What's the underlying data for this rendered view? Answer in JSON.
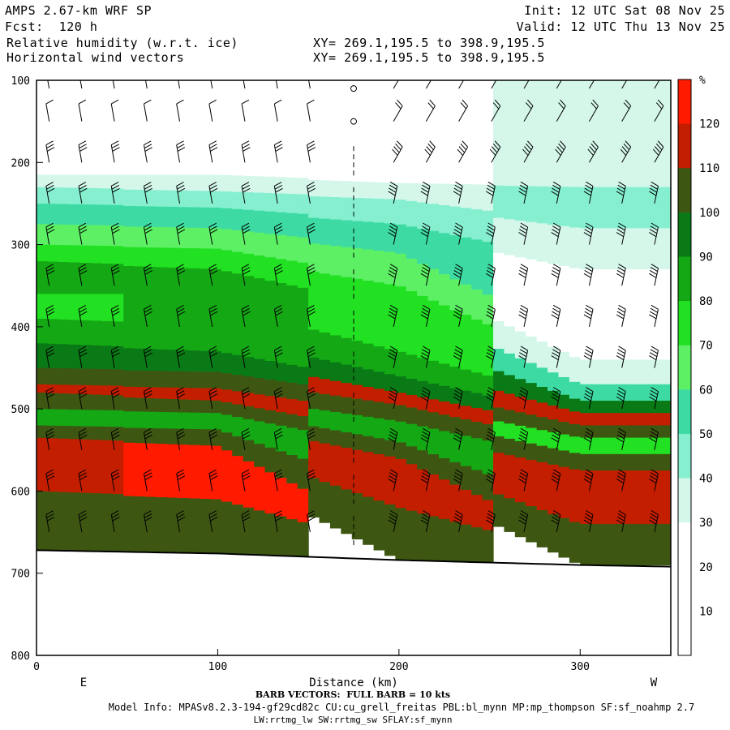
{
  "header": {
    "model_title": "AMPS 2.67-km WRF SP",
    "forecast": "Fcst:  120 h",
    "field_1": "Relative humidity (w.r.t. ice)",
    "field_2": "Horizontal wind vectors",
    "xy_1": "XY= 269.1,195.5 to 398.9,195.5",
    "xy_2": "XY= 269.1,195.5 to 398.9,195.5",
    "init": "Init: 12 UTC Sat 08 Nov 25",
    "valid": "Valid: 12 UTC Thu 13 Nov 25"
  },
  "footer": {
    "barb_note": "BARB VECTORS:  FULL BARB = 10 kts",
    "model_info_1": "Model Info: MPASv8.2.3-194-gf29cd82c CU:cu_grell_freitas PBL:bl_mynn MP:mp_thompson SF:sf_noahmp 2.7",
    "model_info_2": "LW:rrtmg_lw SW:rrtmg_sw SFLAY:sf_mynn"
  },
  "colors": {
    "rh_10_20": "#ffffff",
    "rh_20_30": "#ffffff",
    "rh_30_40": "#d4f7ea",
    "rh_40_50": "#86efd0",
    "rh_50_60": "#3ddba3",
    "rh_60_70": "#5df065",
    "rh_70_80": "#22e022",
    "rh_80_90": "#14a814",
    "rh_90_100": "#0a7a16",
    "rh_100_110": "#3d5712",
    "rh_110_120": "#c41e00",
    "rh_120_plus": "#ff1a00"
  },
  "chart_data": {
    "type": "heatmap",
    "title": "Relative humidity (w.r.t. ice)",
    "overlay": "Horizontal wind vectors (barbs)",
    "xlabel": "Distance (km)",
    "ylabel": "",
    "x_ticks": [
      "0",
      "100",
      "200",
      "300"
    ],
    "y_ticks": [
      "100",
      "200",
      "300",
      "400",
      "500",
      "600",
      "700",
      "800"
    ],
    "xlim": [
      0,
      350
    ],
    "ylim": [
      800,
      100
    ],
    "x_end_labels": {
      "left": "E",
      "right": "W"
    },
    "colorbar": {
      "unit": "%",
      "levels": [
        "10",
        "20",
        "30",
        "40",
        "50",
        "60",
        "70",
        "80",
        "90",
        "100",
        "110",
        "120"
      ]
    },
    "terrain_pressure": [
      {
        "x": 0,
        "p": 672
      },
      {
        "x": 100,
        "p": 676
      },
      {
        "x": 200,
        "p": 684
      },
      {
        "x": 300,
        "p": 690
      },
      {
        "x": 350,
        "p": 692
      }
    ],
    "rh_profiles": [
      {
        "x": 0,
        "layers": [
          {
            "p": 215,
            "rh": 25
          },
          {
            "p": 230,
            "rh": 35
          },
          {
            "p": 250,
            "rh": 45
          },
          {
            "p": 275,
            "rh": 55
          },
          {
            "p": 300,
            "rh": 65
          },
          {
            "p": 320,
            "rh": 75
          },
          {
            "p": 360,
            "rh": 85
          },
          {
            "p": 390,
            "rh": 75
          },
          {
            "p": 420,
            "rh": 85
          },
          {
            "p": 450,
            "rh": 95
          },
          {
            "p": 470,
            "rh": 105
          },
          {
            "p": 480,
            "rh": 115
          },
          {
            "p": 500,
            "rh": 105
          },
          {
            "p": 520,
            "rh": 85
          },
          {
            "p": 535,
            "rh": 105
          },
          {
            "p": 600,
            "rh": 115
          },
          {
            "p": 672,
            "rh": 105
          }
        ]
      },
      {
        "x": 100,
        "layers": [
          {
            "p": 215,
            "rh": 25
          },
          {
            "p": 235,
            "rh": 35
          },
          {
            "p": 255,
            "rh": 45
          },
          {
            "p": 280,
            "rh": 55
          },
          {
            "p": 305,
            "rh": 65
          },
          {
            "p": 330,
            "rh": 75
          },
          {
            "p": 360,
            "rh": 85
          },
          {
            "p": 400,
            "rh": 85
          },
          {
            "p": 430,
            "rh": 85
          },
          {
            "p": 455,
            "rh": 95
          },
          {
            "p": 475,
            "rh": 105
          },
          {
            "p": 490,
            "rh": 115
          },
          {
            "p": 505,
            "rh": 105
          },
          {
            "p": 525,
            "rh": 85
          },
          {
            "p": 545,
            "rh": 105
          },
          {
            "p": 610,
            "rh": 125
          },
          {
            "p": 676,
            "rh": 105
          }
        ]
      },
      {
        "x": 200,
        "layers": [
          {
            "p": 225,
            "rh": 25
          },
          {
            "p": 245,
            "rh": 35
          },
          {
            "p": 275,
            "rh": 45
          },
          {
            "p": 310,
            "rh": 55
          },
          {
            "p": 350,
            "rh": 65
          },
          {
            "p": 390,
            "rh": 75
          },
          {
            "p": 430,
            "rh": 75
          },
          {
            "p": 460,
            "rh": 85
          },
          {
            "p": 480,
            "rh": 95
          },
          {
            "p": 495,
            "rh": 115
          },
          {
            "p": 515,
            "rh": 105
          },
          {
            "p": 540,
            "rh": 85
          },
          {
            "p": 560,
            "rh": 105
          },
          {
            "p": 620,
            "rh": 115
          },
          {
            "p": 684,
            "rh": 105
          }
        ]
      },
      {
        "x": 300,
        "layers": [
          {
            "p": 230,
            "rh": 35
          },
          {
            "p": 280,
            "rh": 45
          },
          {
            "p": 330,
            "rh": 35
          },
          {
            "p": 440,
            "rh": 25
          },
          {
            "p": 470,
            "rh": 35
          },
          {
            "p": 490,
            "rh": 55
          },
          {
            "p": 505,
            "rh": 95
          },
          {
            "p": 520,
            "rh": 115
          },
          {
            "p": 535,
            "rh": 105
          },
          {
            "p": 555,
            "rh": 75
          },
          {
            "p": 575,
            "rh": 105
          },
          {
            "p": 640,
            "rh": 115
          },
          {
            "p": 690,
            "rh": 105
          }
        ]
      }
    ],
    "barb_columns_x": [
      7,
      25,
      43,
      61,
      79,
      97,
      115,
      133,
      151,
      175,
      197,
      215,
      233,
      251,
      269,
      287,
      305,
      323,
      341
    ],
    "barb_levels_p": [
      110,
      150,
      200,
      250,
      300,
      350,
      400,
      450,
      500,
      550,
      600,
      650
    ]
  }
}
